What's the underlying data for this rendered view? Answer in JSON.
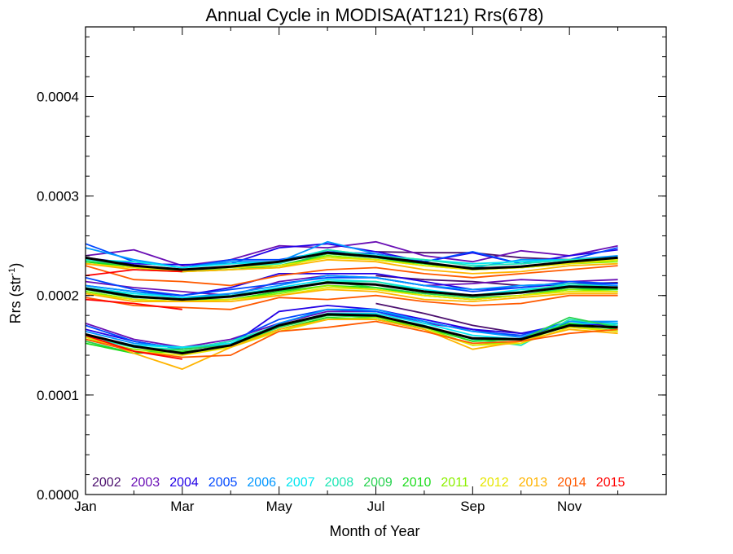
{
  "chart_data": {
    "type": "line",
    "title": "Annual Cycle in MODISA(AT121) Rrs(678)",
    "xlabel": "Month of Year",
    "ylabel_main": "Rrs (str",
    "ylabel_sup": "-1",
    "ylabel_close": ")",
    "xlim": [
      1,
      13
    ],
    "ylim": [
      0.0,
      0.00047
    ],
    "x_ticks": [
      {
        "value": 1,
        "label": "Jan"
      },
      {
        "value": 3,
        "label": "Mar"
      },
      {
        "value": 5,
        "label": "May"
      },
      {
        "value": 7,
        "label": "Jul"
      },
      {
        "value": 9,
        "label": "Sep"
      },
      {
        "value": 11,
        "label": "Nov"
      }
    ],
    "y_ticks": [
      {
        "value": 0.0,
        "label": "0.0000"
      },
      {
        "value": 0.0001,
        "label": "0.0001"
      },
      {
        "value": 0.0002,
        "label": "0.0002"
      },
      {
        "value": 0.0003,
        "label": "0.0003"
      },
      {
        "value": 0.0004,
        "label": "0.0004"
      }
    ],
    "grid": false,
    "legend_position": "bottom",
    "x": [
      1,
      2,
      3,
      4,
      5,
      6,
      7,
      8,
      9,
      10,
      11,
      12
    ],
    "series": [
      {
        "name": "2002",
        "color": "#4b0f6e",
        "upper": [
          null,
          null,
          null,
          null,
          null,
          null,
          0.000244,
          0.000243,
          0.000243,
          0.000238,
          0.000236,
          0.000237
        ],
        "middle": [
          null,
          null,
          null,
          null,
          null,
          null,
          0.00022,
          0.000216,
          0.000214,
          0.00021,
          0.000212,
          0.000213
        ],
        "lower": [
          null,
          null,
          null,
          null,
          null,
          null,
          0.000192,
          0.000182,
          0.00017,
          0.000162,
          0.000168,
          0.00017
        ]
      },
      {
        "name": "2003",
        "color": "#6a0fb5",
        "upper": [
          0.00024,
          0.000246,
          0.00023,
          0.000236,
          0.00025,
          0.000248,
          0.000254,
          0.00024,
          0.000234,
          0.000245,
          0.00024,
          0.00025
        ],
        "middle": [
          0.000214,
          0.000208,
          0.000204,
          0.0002,
          0.000214,
          0.00022,
          0.000218,
          0.00021,
          0.000212,
          0.000216,
          0.000214,
          0.000216
        ],
        "lower": [
          0.000172,
          0.000156,
          0.000148,
          0.000156,
          0.000172,
          0.000184,
          0.000184,
          0.000172,
          0.000166,
          0.000158,
          0.00017,
          0.000172
        ]
      },
      {
        "name": "2004",
        "color": "#2200e6",
        "upper": [
          0.000238,
          0.000232,
          0.000231,
          0.000232,
          0.000248,
          0.000252,
          0.000244,
          0.000234,
          0.000243,
          0.000232,
          0.00024,
          0.000246
        ],
        "middle": [
          0.00021,
          0.000204,
          0.0002,
          0.000208,
          0.000222,
          0.000222,
          0.000222,
          0.000214,
          0.000206,
          0.000208,
          0.000212,
          0.000212
        ],
        "lower": [
          0.000166,
          0.000154,
          0.000146,
          0.00015,
          0.000184,
          0.00019,
          0.000186,
          0.000176,
          0.000166,
          0.000162,
          0.000172,
          0.00017
        ]
      },
      {
        "name": "2005",
        "color": "#0048ff",
        "upper": [
          0.000252,
          0.000234,
          0.000228,
          0.000236,
          0.000236,
          0.000244,
          0.000242,
          0.000234,
          0.000244,
          0.000232,
          0.000236,
          0.000248
        ],
        "middle": [
          0.000218,
          0.000206,
          0.0002,
          0.000206,
          0.000212,
          0.000218,
          0.000218,
          0.00021,
          0.000204,
          0.000208,
          0.000214,
          0.000212
        ],
        "lower": [
          0.00017,
          0.000154,
          0.000146,
          0.000154,
          0.000176,
          0.000186,
          0.000184,
          0.000174,
          0.000164,
          0.00016,
          0.000174,
          0.000172
        ]
      },
      {
        "name": "2006",
        "color": "#0096ff",
        "upper": [
          0.000248,
          0.000236,
          0.000228,
          0.000234,
          0.000234,
          0.000254,
          0.000242,
          0.000232,
          0.000228,
          0.000236,
          0.000236,
          0.00024
        ],
        "middle": [
          0.00021,
          0.000204,
          0.000198,
          0.000202,
          0.00021,
          0.00022,
          0.000218,
          0.00021,
          0.000206,
          0.00021,
          0.000212,
          0.00021
        ],
        "lower": [
          0.000164,
          0.000152,
          0.000148,
          0.00015,
          0.000172,
          0.000186,
          0.000186,
          0.000174,
          0.000164,
          0.000158,
          0.000174,
          0.000174
        ]
      },
      {
        "name": "2007",
        "color": "#00e6f0",
        "upper": [
          0.000236,
          0.000234,
          0.000228,
          0.000232,
          0.000234,
          0.000246,
          0.00024,
          0.000236,
          0.000232,
          0.000234,
          0.000236,
          0.000238
        ],
        "middle": [
          0.000208,
          0.000202,
          0.000198,
          0.0002,
          0.000208,
          0.000216,
          0.000214,
          0.000206,
          0.0002,
          0.000206,
          0.00021,
          0.000208
        ],
        "lower": [
          0.00016,
          0.00015,
          0.000148,
          0.000152,
          0.00017,
          0.000182,
          0.000182,
          0.000172,
          0.00016,
          0.000156,
          0.000172,
          0.000172
        ]
      },
      {
        "name": "2008",
        "color": "#1ee6b4",
        "upper": [
          0.000236,
          0.00023,
          0.000226,
          0.000228,
          0.000232,
          0.000246,
          0.00024,
          0.000236,
          0.00023,
          0.000232,
          0.000236,
          0.000238
        ],
        "middle": [
          0.000208,
          0.0002,
          0.000196,
          0.0002,
          0.000206,
          0.000214,
          0.000214,
          0.000204,
          0.0002,
          0.000204,
          0.000212,
          0.000208
        ],
        "lower": [
          0.000158,
          0.000148,
          0.000146,
          0.000154,
          0.00017,
          0.00018,
          0.00018,
          0.00017,
          0.000156,
          0.00015,
          0.000176,
          0.00017
        ]
      },
      {
        "name": "2009",
        "color": "#28d250",
        "upper": [
          0.000234,
          0.00023,
          0.000224,
          0.000228,
          0.00023,
          0.000242,
          0.000238,
          0.000232,
          0.000228,
          0.000228,
          0.000232,
          0.000236
        ],
        "middle": [
          0.000206,
          0.000198,
          0.000196,
          0.000196,
          0.000204,
          0.000214,
          0.000208,
          0.000202,
          0.000198,
          0.0002,
          0.000208,
          0.000206
        ],
        "lower": [
          0.000154,
          0.000142,
          0.000146,
          0.00015,
          0.000168,
          0.00018,
          0.000178,
          0.000168,
          0.000154,
          0.000156,
          0.000178,
          0.000168
        ]
      },
      {
        "name": "2010",
        "color": "#1edc1e",
        "upper": [
          0.000234,
          0.000228,
          0.000224,
          0.000226,
          0.00023,
          0.00024,
          0.000236,
          0.000232,
          0.000226,
          0.000228,
          0.000234,
          0.000236
        ],
        "middle": [
          0.000204,
          0.000196,
          0.000194,
          0.000196,
          0.000204,
          0.00021,
          0.000208,
          0.0002,
          0.000196,
          0.0002,
          0.000206,
          0.000206
        ],
        "lower": [
          0.000152,
          0.000142,
          0.000144,
          0.000148,
          0.000166,
          0.000178,
          0.000176,
          0.000168,
          0.000154,
          0.000156,
          0.000172,
          0.000166
        ]
      },
      {
        "name": "2011",
        "color": "#8cf000",
        "upper": [
          0.000232,
          0.000228,
          0.000224,
          0.000226,
          0.000228,
          0.00024,
          0.000236,
          0.00023,
          0.000226,
          0.000228,
          0.000232,
          0.000234
        ],
        "middle": [
          0.000204,
          0.000196,
          0.000194,
          0.000196,
          0.000202,
          0.00021,
          0.000206,
          0.0002,
          0.000196,
          0.0002,
          0.000206,
          0.000204
        ],
        "lower": [
          0.000156,
          0.000146,
          0.000142,
          0.00015,
          0.000166,
          0.000176,
          0.000178,
          0.000168,
          0.00015,
          0.000154,
          0.00017,
          0.000164
        ]
      },
      {
        "name": "2012",
        "color": "#e6e600",
        "upper": [
          0.000232,
          0.000228,
          0.000226,
          0.000228,
          0.00023,
          0.000238,
          0.000236,
          0.00023,
          0.000226,
          0.000228,
          0.000232,
          0.000236
        ],
        "middle": [
          0.000202,
          0.000196,
          0.000194,
          0.000196,
          0.0002,
          0.000208,
          0.000206,
          0.0002,
          0.000196,
          0.0002,
          0.000204,
          0.000204
        ],
        "lower": [
          0.000158,
          0.000144,
          0.00014,
          0.000148,
          0.000164,
          0.000176,
          0.000176,
          0.000166,
          0.00015,
          0.000152,
          0.000168,
          0.000164
        ]
      },
      {
        "name": "2013",
        "color": "#ffb400",
        "upper": [
          0.000232,
          0.000226,
          0.000224,
          0.000226,
          0.000228,
          0.000236,
          0.000234,
          0.000226,
          0.000222,
          0.000224,
          0.00023,
          0.000232
        ],
        "middle": [
          0.000202,
          0.000194,
          0.000194,
          0.000194,
          0.0002,
          0.000206,
          0.000204,
          0.000196,
          0.000194,
          0.000198,
          0.000202,
          0.000202
        ],
        "lower": [
          0.00016,
          0.000142,
          0.000126,
          0.000148,
          0.000166,
          0.000176,
          0.000176,
          0.000166,
          0.000146,
          0.000154,
          0.000166,
          0.000162
        ]
      },
      {
        "name": "2014",
        "color": "#ff5a00",
        "upper": [
          0.00023,
          0.000216,
          0.000214,
          0.00021,
          0.00022,
          0.000226,
          0.000228,
          0.000222,
          0.000218,
          0.000222,
          0.000226,
          0.00023
        ],
        "middle": [
          0.000198,
          0.00019,
          0.000188,
          0.000186,
          0.000198,
          0.000196,
          0.0002,
          0.000194,
          0.00019,
          0.000192,
          0.0002,
          0.0002
        ],
        "lower": [
          0.000156,
          0.000144,
          0.000138,
          0.00014,
          0.000164,
          0.000168,
          0.000174,
          0.000164,
          0.000152,
          0.000154,
          0.000162,
          0.000166
        ]
      },
      {
        "name": "2015",
        "color": "#ff0000",
        "upper": [
          0.00022,
          0.000226,
          0.000224,
          null,
          null,
          null,
          null,
          null,
          null,
          null,
          null,
          null
        ],
        "middle": [
          0.000196,
          0.000192,
          0.000186,
          null,
          null,
          null,
          null,
          null,
          null,
          null,
          null,
          null
        ],
        "lower": [
          0.00016,
          0.000144,
          0.000136,
          null,
          null,
          null,
          null,
          null,
          null,
          null,
          null,
          null
        ]
      }
    ],
    "mean_series": {
      "color": "#000000",
      "upper": [
        0.000238,
        0.00023,
        0.000226,
        0.000229,
        0.000234,
        0.000243,
        0.000239,
        0.000233,
        0.000227,
        0.000229,
        0.000234,
        0.000238
      ],
      "middle": [
        0.000207,
        0.000199,
        0.000196,
        0.000199,
        0.000206,
        0.000213,
        0.000211,
        0.000204,
        0.0002,
        0.000203,
        0.000209,
        0.000208
      ],
      "lower": [
        0.000161,
        0.000149,
        0.000142,
        0.00015,
        0.00017,
        0.000181,
        0.00018,
        0.000169,
        0.000157,
        0.000156,
        0.00017,
        0.000168
      ]
    }
  }
}
